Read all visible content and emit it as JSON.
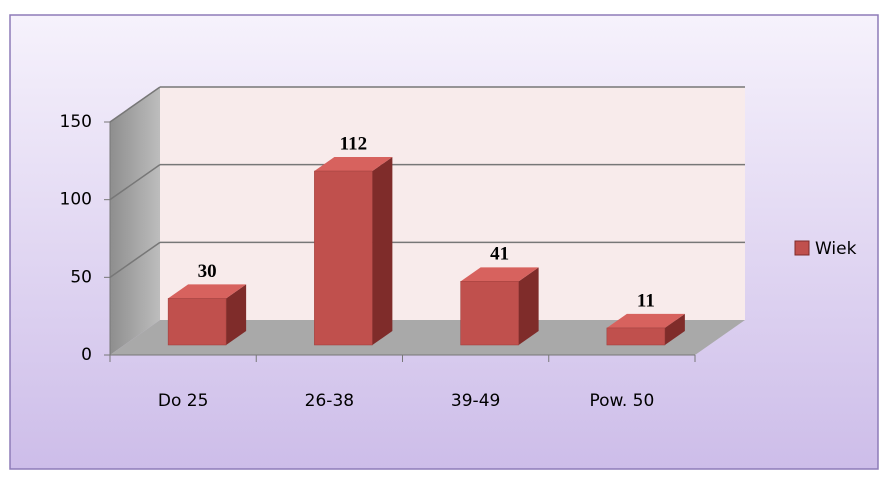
{
  "chart_data": {
    "type": "bar3d",
    "categories": [
      "Do 25",
      "26-38",
      "39-49",
      "Pow. 50"
    ],
    "series": [
      {
        "name": "Wiek",
        "color": "#c0504d",
        "values": [
          30,
          112,
          41,
          11
        ]
      }
    ],
    "ylim": [
      0,
      150
    ],
    "yticks": [
      0,
      50,
      100,
      150
    ],
    "grid": true,
    "legend": "right"
  }
}
